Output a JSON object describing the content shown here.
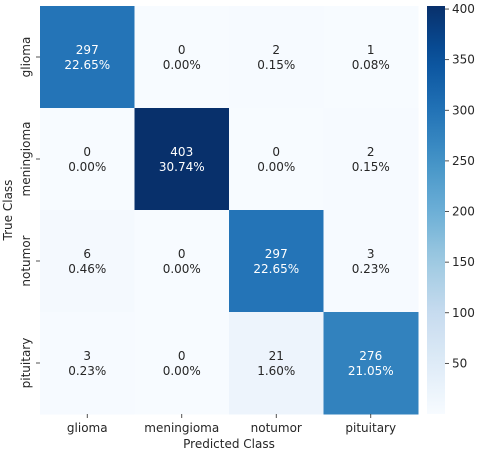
{
  "chart_data": {
    "type": "heatmap",
    "title": "",
    "xlabel": "Predicted Class",
    "ylabel": "True Class",
    "x_categories": [
      "glioma",
      "meningioma",
      "notumor",
      "pituitary"
    ],
    "y_categories": [
      "glioma",
      "meningioma",
      "notumor",
      "pituitary"
    ],
    "values": [
      [
        297,
        0,
        2,
        1
      ],
      [
        0,
        403,
        0,
        2
      ],
      [
        6,
        0,
        297,
        3
      ],
      [
        3,
        0,
        21,
        276
      ]
    ],
    "percent_labels": [
      [
        "22.65%",
        "0.00%",
        "0.15%",
        "0.08%"
      ],
      [
        "0.00%",
        "30.74%",
        "0.00%",
        "0.15%"
      ],
      [
        "0.46%",
        "0.00%",
        "22.65%",
        "0.23%"
      ],
      [
        "0.23%",
        "0.00%",
        "1.60%",
        "21.05%"
      ]
    ],
    "colorbar": {
      "colormap": "Blues",
      "vmin": 0,
      "vmax": 403,
      "ticks": [
        50,
        100,
        150,
        200,
        250,
        300,
        350,
        400
      ]
    }
  }
}
